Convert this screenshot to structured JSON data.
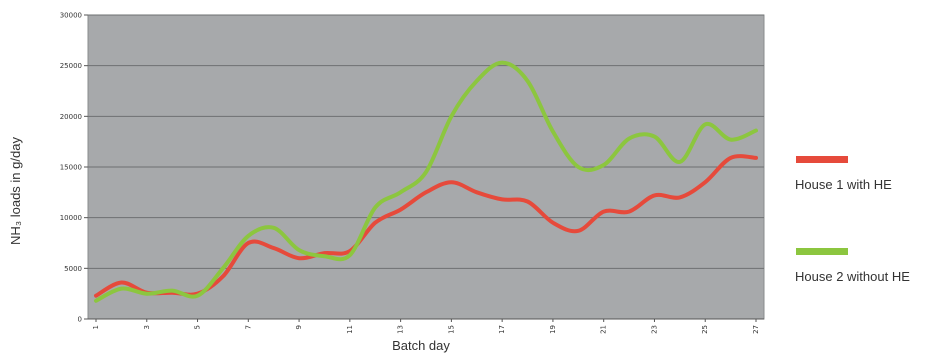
{
  "chart_data": {
    "type": "line",
    "xlabel": "Batch day",
    "ylabel": "NH₃ loads in g/day",
    "ylim": [
      0,
      30000
    ],
    "yticks": [
      0,
      5000,
      10000,
      15000,
      20000,
      25000,
      30000
    ],
    "xlim": [
      1,
      27
    ],
    "xticks": [
      1,
      3,
      5,
      7,
      9,
      11,
      13,
      15,
      17,
      19,
      21,
      23,
      25,
      27
    ],
    "grid": "horizontal",
    "legend_position": "right",
    "background_color": "#a7a9ab",
    "series": [
      {
        "name": "House 1 with HE",
        "color": "#e64a3b",
        "x": [
          1,
          2,
          3,
          4,
          5,
          6,
          7,
          8,
          9,
          10,
          11,
          12,
          13,
          14,
          15,
          16,
          17,
          18,
          19,
          20,
          21,
          22,
          23,
          24,
          25,
          26,
          27
        ],
        "values": [
          2300,
          3600,
          2600,
          2600,
          2500,
          4200,
          7500,
          7000,
          6000,
          6500,
          6700,
          9500,
          10800,
          12500,
          13500,
          12500,
          11800,
          11600,
          9500,
          8700,
          10600,
          10600,
          12200,
          12000,
          13500,
          15900,
          15900
        ]
      },
      {
        "name": "House 2 without HE",
        "color": "#8cc63f",
        "x": [
          1,
          2,
          3,
          4,
          5,
          6,
          7,
          8,
          9,
          10,
          11,
          12,
          13,
          14,
          15,
          16,
          17,
          18,
          19,
          20,
          21,
          22,
          23,
          24,
          25,
          26,
          27
        ],
        "values": [
          1800,
          3000,
          2500,
          2800,
          2300,
          5000,
          8200,
          9000,
          6800,
          6200,
          6300,
          11000,
          12500,
          14500,
          20000,
          23500,
          25300,
          23500,
          18500,
          15000,
          15200,
          17800,
          18000,
          15500,
          19200,
          17700,
          18600
        ]
      }
    ]
  }
}
